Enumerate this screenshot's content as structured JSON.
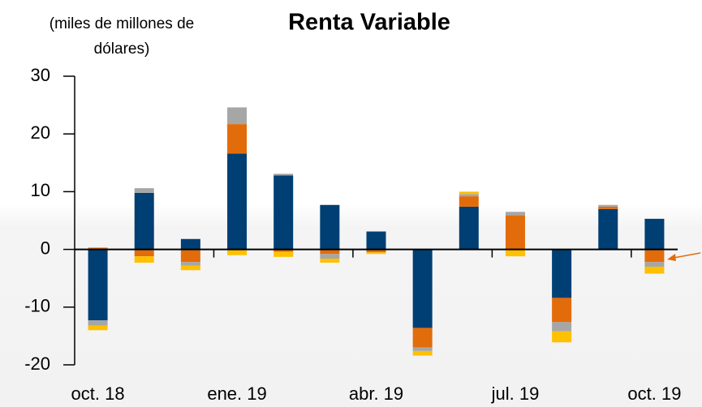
{
  "chart_data": {
    "type": "stacked_bar",
    "title": "Renta Variable",
    "subtitle": [
      "(miles de millones de",
      "dólares)"
    ],
    "categories": [
      "oct. 18",
      null,
      null,
      "ene. 19",
      null,
      null,
      "abr. 19",
      null,
      null,
      "jul. 19",
      null,
      null,
      "oct. 19"
    ],
    "series": [
      {
        "color": "#003f73",
        "values": [
          -12.3,
          9.8,
          1.8,
          16.6,
          12.8,
          7.7,
          3.1,
          -13.6,
          7.4,
          0,
          -8.4,
          7.0,
          5.3
        ]
      },
      {
        "color": "#e36c0a",
        "values": [
          0.3,
          -1.2,
          -2.2,
          5.1,
          -0.4,
          -0.8,
          -0.5,
          -3.4,
          1.8,
          5.9,
          -4.2,
          0.4,
          -2.2
        ]
      },
      {
        "color": "#a6a6a6",
        "values": [
          -0.9,
          0.8,
          -0.6,
          2.9,
          0.3,
          -0.8,
          0,
          -0.6,
          0.4,
          0.6,
          -1.6,
          0.3,
          -0.8
        ]
      },
      {
        "color": "#ffc000",
        "values": [
          -0.8,
          -1.1,
          -0.8,
          -1.0,
          -0.9,
          -0.7,
          -0.3,
          -0.8,
          0.4,
          -1.2,
          -1.9,
          0,
          -1.2
        ]
      }
    ],
    "ylim": [
      -20,
      30
    ],
    "yticks": [
      -20,
      -10,
      0,
      10,
      20,
      30
    ],
    "grid": false
  }
}
